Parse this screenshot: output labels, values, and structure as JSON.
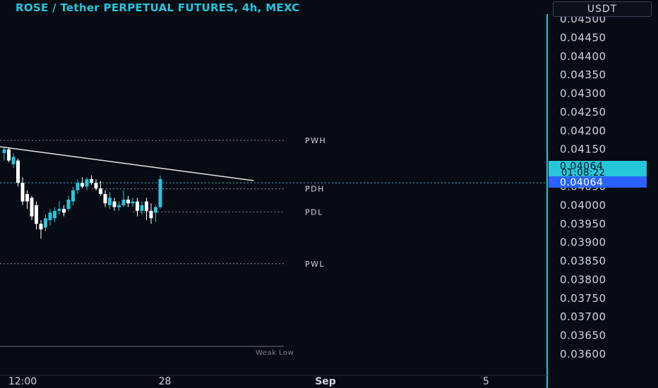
{
  "header": {
    "title": "ROSE / Tether PERPETUAL FUTURES, 4h, MEXC",
    "currency": "USDT"
  },
  "price_labels": {
    "last_price": "0.04064",
    "countdown": "01:08:22",
    "crosshair_price": "0.04064"
  },
  "colors": {
    "background": "#070b14",
    "accent": "#26c6da",
    "up_candle": "#26c6da",
    "down_candle": "#ffffff",
    "level_line": "#8a8f9c",
    "trend_line": "#e6e6e6"
  },
  "chart_data": {
    "type": "candlestick",
    "title": "ROSE / Tether PERPETUAL FUTURES, 4h, MEXC",
    "ylim": [
      0.0358,
      0.0451
    ],
    "y_ticks": [
      "0.04500",
      "0.04450",
      "0.04400",
      "0.04350",
      "0.04300",
      "0.04250",
      "0.04200",
      "0.04150",
      "0.04100",
      "0.04050",
      "0.04000",
      "0.03950",
      "0.03900",
      "0.03850",
      "0.03800",
      "0.03750",
      "0.03700",
      "0.03650",
      "0.03600"
    ],
    "x_ticks": [
      {
        "label": "12:00",
        "index": 4
      },
      {
        "label": "28",
        "index": 35
      },
      {
        "label": "Sep",
        "index": 70,
        "bold": true
      },
      {
        "label": "5",
        "index": 105
      }
    ],
    "candles": [
      {
        "o": 0.0414,
        "h": 0.04155,
        "l": 0.0412,
        "c": 0.0415
      },
      {
        "o": 0.0415,
        "h": 0.04155,
        "l": 0.04115,
        "c": 0.0412
      },
      {
        "o": 0.0411,
        "h": 0.0414,
        "l": 0.041,
        "c": 0.0413
      },
      {
        "o": 0.0412,
        "h": 0.04125,
        "l": 0.0405,
        "c": 0.0406
      },
      {
        "o": 0.0406,
        "h": 0.04075,
        "l": 0.04,
        "c": 0.0401
      },
      {
        "o": 0.0403,
        "h": 0.0404,
        "l": 0.0399,
        "c": 0.0401
      },
      {
        "o": 0.0402,
        "h": 0.04025,
        "l": 0.0396,
        "c": 0.0397
      },
      {
        "o": 0.04,
        "h": 0.0401,
        "l": 0.03935,
        "c": 0.0395
      },
      {
        "o": 0.0395,
        "h": 0.0396,
        "l": 0.0391,
        "c": 0.03935
      },
      {
        "o": 0.0394,
        "h": 0.03975,
        "l": 0.0393,
        "c": 0.03965
      },
      {
        "o": 0.0396,
        "h": 0.0399,
        "l": 0.03945,
        "c": 0.0398
      },
      {
        "o": 0.03965,
        "h": 0.03995,
        "l": 0.03955,
        "c": 0.03985
      },
      {
        "o": 0.03985,
        "h": 0.0401,
        "l": 0.03975,
        "c": 0.0399
      },
      {
        "o": 0.0399,
        "h": 0.04,
        "l": 0.0397,
        "c": 0.0398
      },
      {
        "o": 0.0399,
        "h": 0.04025,
        "l": 0.03985,
        "c": 0.04015
      },
      {
        "o": 0.0401,
        "h": 0.0405,
        "l": 0.04,
        "c": 0.0404
      },
      {
        "o": 0.0404,
        "h": 0.0407,
        "l": 0.0403,
        "c": 0.0406
      },
      {
        "o": 0.0406,
        "h": 0.04075,
        "l": 0.04045,
        "c": 0.0405
      },
      {
        "o": 0.0405,
        "h": 0.04075,
        "l": 0.0404,
        "c": 0.0407
      },
      {
        "o": 0.0407,
        "h": 0.0408,
        "l": 0.04055,
        "c": 0.0406
      },
      {
        "o": 0.0406,
        "h": 0.0407,
        "l": 0.0404,
        "c": 0.04045
      },
      {
        "o": 0.04045,
        "h": 0.04065,
        "l": 0.04025,
        "c": 0.0403
      },
      {
        "o": 0.0403,
        "h": 0.0404,
        "l": 0.03995,
        "c": 0.04005
      },
      {
        "o": 0.04,
        "h": 0.04035,
        "l": 0.0399,
        "c": 0.0402
      },
      {
        "o": 0.0401,
        "h": 0.0402,
        "l": 0.03985,
        "c": 0.03995
      },
      {
        "o": 0.03995,
        "h": 0.0401,
        "l": 0.03985,
        "c": 0.04
      },
      {
        "o": 0.04,
        "h": 0.0404,
        "l": 0.03995,
        "c": 0.04015
      },
      {
        "o": 0.04015,
        "h": 0.04025,
        "l": 0.03995,
        "c": 0.04005
      },
      {
        "o": 0.04005,
        "h": 0.0402,
        "l": 0.03995,
        "c": 0.0401
      },
      {
        "o": 0.0401,
        "h": 0.0402,
        "l": 0.0397,
        "c": 0.03985
      },
      {
        "o": 0.03985,
        "h": 0.0401,
        "l": 0.03975,
        "c": 0.04
      },
      {
        "o": 0.0401,
        "h": 0.0402,
        "l": 0.0396,
        "c": 0.03985
      },
      {
        "o": 0.03985,
        "h": 0.04005,
        "l": 0.0395,
        "c": 0.03965
      },
      {
        "o": 0.0398,
        "h": 0.04,
        "l": 0.03955,
        "c": 0.03995
      },
      {
        "o": 0.03995,
        "h": 0.0408,
        "l": 0.0399,
        "c": 0.0407
      }
    ],
    "levels": [
      {
        "name": "PWH",
        "value": 0.04174,
        "start_index": 0
      },
      {
        "name": "PDH",
        "value": 0.04044,
        "start_index": 20
      },
      {
        "name": "PDL",
        "value": 0.03982,
        "start_index": 29
      },
      {
        "name": "PWL",
        "value": 0.03843,
        "start_index": 0
      }
    ],
    "weak_low": {
      "label": "Weak Low",
      "value": 0.03625
    },
    "trendline": {
      "from": {
        "index": 0,
        "value": 0.04157
      },
      "to": {
        "index": 51,
        "value": 0.04066
      }
    },
    "last_price": 0.04064,
    "crosshair_price": 0.04064,
    "grid": false
  }
}
